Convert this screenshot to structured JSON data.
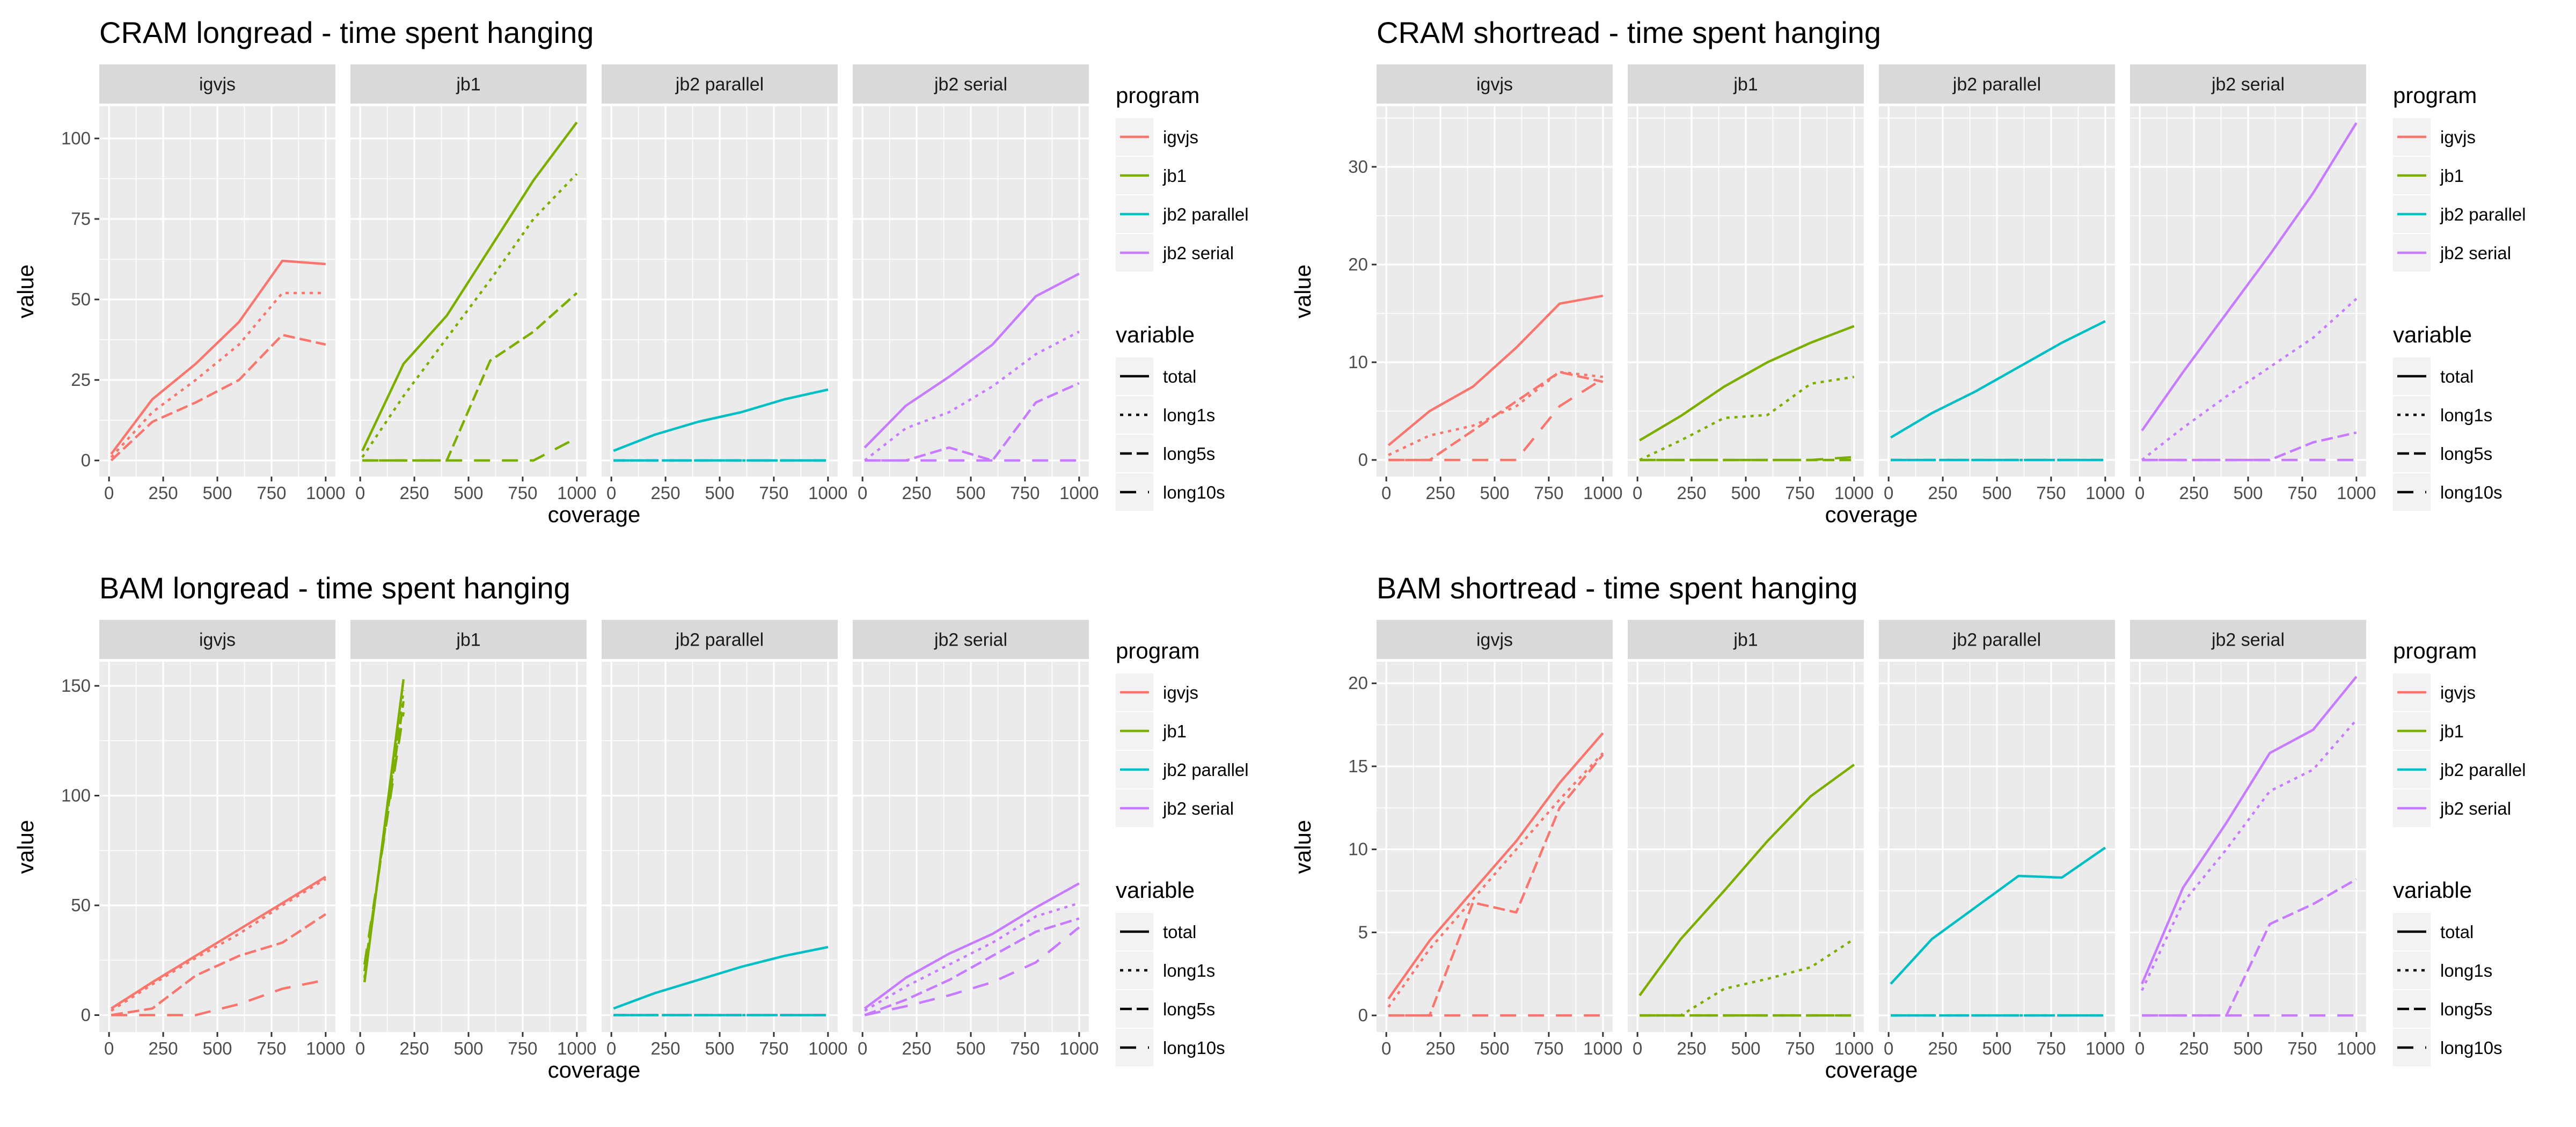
{
  "facets": [
    "igvjs",
    "jb1",
    "jb2 parallel",
    "jb2 serial"
  ],
  "x_label": "coverage",
  "y_label": "value",
  "legend": {
    "program_title": "program",
    "program_items": [
      "igvjs",
      "jb1",
      "jb2 parallel",
      "jb2 serial"
    ],
    "variable_title": "variable",
    "variable_items": [
      "total",
      "long1s",
      "long5s",
      "long10s"
    ]
  },
  "colors": {
    "igvjs": "#F8766D",
    "jb1": "#7CAE00",
    "jb2 parallel": "#00BFC4",
    "jb2 serial": "#C77CFF"
  },
  "chart_data": [
    {
      "type": "line",
      "title": "CRAM longread - time spent hanging",
      "xlabel": "coverage",
      "ylabel": "value",
      "xlim": [
        0,
        1000
      ],
      "ylim": [
        -5,
        110
      ],
      "xticks": [
        0,
        250,
        500,
        750,
        1000
      ],
      "yticks": [
        0,
        25,
        50,
        75,
        100
      ],
      "x_tick_labels": [
        "0",
        "250",
        "500",
        "750",
        "1000"
      ],
      "y_tick_labels": [
        "0",
        "25",
        "50",
        "75",
        "100"
      ],
      "show_xlabel": true,
      "facets": {
        "igvjs": {
          "x": [
            10,
            200,
            400,
            600,
            800,
            1000
          ],
          "total": [
            2,
            19,
            30,
            43,
            62,
            61
          ],
          "long1s": [
            1,
            15,
            25,
            36,
            52,
            52
          ],
          "long5s": [
            0,
            12,
            18,
            25,
            39,
            36
          ],
          "long10s": null
        },
        "jb1": {
          "x": [
            10,
            200,
            400,
            600,
            800,
            1000
          ],
          "total": [
            3,
            30,
            45,
            66,
            87,
            105
          ],
          "long1s": [
            1,
            20,
            38,
            56,
            75,
            89
          ],
          "long5s": [
            0,
            0,
            0,
            31,
            40,
            52
          ],
          "long10s": [
            0,
            0,
            0,
            0,
            0,
            7
          ]
        },
        "jb2 parallel": {
          "x": [
            10,
            200,
            400,
            600,
            800,
            1000
          ],
          "total": [
            3,
            8,
            12,
            15,
            19,
            22
          ],
          "long1s": [
            0,
            0,
            0,
            0,
            0,
            0
          ],
          "long5s": [
            0,
            0,
            0,
            0,
            0,
            0
          ],
          "long10s": [
            0,
            0,
            0,
            0,
            0,
            0
          ]
        },
        "jb2 serial": {
          "x": [
            10,
            200,
            400,
            600,
            800,
            1000
          ],
          "total": [
            4,
            17,
            26,
            36,
            51,
            58
          ],
          "long1s": [
            0,
            10,
            15,
            23,
            33,
            40
          ],
          "long5s": [
            0,
            0,
            4,
            0,
            18,
            24
          ],
          "long10s": [
            0,
            0,
            0,
            0,
            0,
            0
          ]
        }
      }
    },
    {
      "type": "line",
      "title": "CRAM shortread - time spent hanging",
      "xlabel": "coverage",
      "ylabel": "value",
      "xlim": [
        0,
        1000
      ],
      "ylim": [
        -1.7,
        36.2
      ],
      "xticks": [
        0,
        250,
        500,
        750,
        1000
      ],
      "yticks": [
        0,
        10,
        20,
        30
      ],
      "x_tick_labels": [
        "0",
        "250",
        "500",
        "750",
        "1000"
      ],
      "y_tick_labels": [
        "0",
        "10",
        "20",
        "30"
      ],
      "show_xlabel": true,
      "facets": {
        "igvjs": {
          "x": [
            10,
            200,
            400,
            600,
            800,
            1000
          ],
          "total": [
            1.5,
            5,
            7.5,
            11.5,
            16,
            16.8
          ],
          "long1s": [
            0.5,
            2.5,
            3.5,
            5.5,
            9,
            8.5
          ],
          "long5s": [
            0,
            0,
            3,
            6,
            9,
            8
          ],
          "long10s": [
            0,
            0,
            0,
            0,
            5.5,
            8.3
          ]
        },
        "jb1": {
          "x": [
            10,
            200,
            400,
            600,
            800,
            1000
          ],
          "total": [
            2,
            4.5,
            7.5,
            10,
            12,
            13.7
          ],
          "long1s": [
            0,
            2,
            4.3,
            4.6,
            7.8,
            8.5
          ],
          "long5s": [
            0,
            0,
            0,
            0,
            0,
            0
          ],
          "long10s": [
            0,
            0,
            0,
            0,
            0,
            0.3
          ]
        },
        "jb2 parallel": {
          "x": [
            10,
            200,
            400,
            600,
            800,
            1000
          ],
          "total": [
            2.3,
            4.8,
            7,
            9.5,
            12,
            14.2
          ],
          "long1s": [
            0,
            0,
            0,
            0,
            0,
            0
          ],
          "long5s": [
            0,
            0,
            0,
            0,
            0,
            0
          ],
          "long10s": [
            0,
            0,
            0,
            0,
            0,
            0
          ]
        },
        "jb2 serial": {
          "x": [
            10,
            200,
            400,
            600,
            800,
            1000
          ],
          "total": [
            3,
            9,
            15,
            21,
            27.3,
            34.5
          ],
          "long1s": [
            0,
            3.3,
            6.5,
            9.5,
            12.5,
            16.5
          ],
          "long5s": [
            0,
            0,
            0,
            0,
            1.8,
            2.8
          ],
          "long10s": [
            0,
            0,
            0,
            0,
            0,
            0
          ]
        }
      }
    },
    {
      "type": "line",
      "title": "BAM longread - time spent hanging",
      "xlabel": "coverage",
      "ylabel": "value",
      "xlim": [
        0,
        1000
      ],
      "ylim": [
        -7.7,
        161
      ],
      "xticks": [
        0,
        250,
        500,
        750,
        1000
      ],
      "yticks": [
        0,
        50,
        100,
        150
      ],
      "x_tick_labels": [
        "0",
        "250",
        "500",
        "750",
        "1000"
      ],
      "y_tick_labels": [
        "0",
        "50",
        "100",
        "150"
      ],
      "show_xlabel": true,
      "facets": {
        "igvjs": {
          "x": [
            10,
            200,
            400,
            600,
            800,
            1000
          ],
          "total": [
            3,
            15,
            27,
            39,
            51,
            63
          ],
          "long1s": [
            2,
            14,
            26,
            37,
            50,
            62
          ],
          "long5s": [
            0,
            3,
            18,
            27,
            33,
            46
          ],
          "long10s": [
            0,
            0,
            0,
            5,
            12,
            16
          ]
        },
        "jb1": {
          "x": [
            20,
            200
          ],
          "total": [
            15,
            153
          ],
          "long1s": [
            17,
            148
          ],
          "long5s": [
            20,
            143
          ],
          "long10s": [
            23,
            138
          ]
        },
        "jb2 parallel": {
          "x": [
            10,
            200,
            400,
            600,
            800,
            1000
          ],
          "total": [
            3,
            10,
            16,
            22,
            27,
            31
          ],
          "long1s": [
            0,
            0,
            0,
            0,
            0,
            0
          ],
          "long5s": [
            0,
            0,
            0,
            0,
            0,
            0
          ],
          "long10s": [
            0,
            0,
            0,
            0,
            0,
            0
          ]
        },
        "jb2 serial": {
          "x": [
            10,
            200,
            400,
            600,
            800,
            1000
          ],
          "total": [
            3,
            17,
            28,
            37,
            49,
            60
          ],
          "long1s": [
            2,
            13,
            23,
            33,
            45,
            51
          ],
          "long5s": [
            0,
            7,
            16,
            27,
            38,
            44
          ],
          "long10s": [
            0,
            4,
            9,
            15,
            24,
            40
          ]
        }
      }
    },
    {
      "type": "line",
      "title": "BAM shortread - time spent hanging",
      "xlabel": "coverage",
      "ylabel": "value",
      "xlim": [
        0,
        1000
      ],
      "ylim": [
        -1,
        21.3
      ],
      "xticks": [
        0,
        250,
        500,
        750,
        1000
      ],
      "yticks": [
        0,
        5,
        10,
        15,
        20
      ],
      "x_tick_labels": [
        "0",
        "250",
        "500",
        "750",
        "1000"
      ],
      "y_tick_labels": [
        "0",
        "5",
        "10",
        "15",
        "20"
      ],
      "show_xlabel": true,
      "facets": {
        "igvjs": {
          "x": [
            10,
            200,
            400,
            600,
            800,
            1000
          ],
          "total": [
            1,
            4.5,
            7.5,
            10.5,
            14,
            17
          ],
          "long1s": [
            0.5,
            4,
            7,
            10,
            13,
            15.8
          ],
          "long5s": [
            0,
            0,
            6.8,
            6.2,
            12.5,
            15.7
          ],
          "long10s": [
            0,
            0,
            0,
            0,
            0,
            0
          ]
        },
        "jb1": {
          "x": [
            10,
            200,
            400,
            600,
            800,
            1000
          ],
          "total": [
            1.2,
            4.6,
            7.5,
            10.5,
            13.2,
            15.1
          ],
          "long1s": [
            0,
            0,
            1.6,
            2.2,
            2.9,
            4.6
          ],
          "long5s": [
            0,
            0,
            0,
            0,
            0,
            0
          ],
          "long10s": [
            0,
            0,
            0,
            0,
            0,
            0
          ]
        },
        "jb2 parallel": {
          "x": [
            10,
            200,
            400,
            600,
            800,
            1000
          ],
          "total": [
            1.9,
            4.6,
            6.5,
            8.4,
            8.3,
            10.1
          ],
          "long1s": [
            0,
            0,
            0,
            0,
            0,
            0
          ],
          "long5s": [
            0,
            0,
            0,
            0,
            0,
            0
          ],
          "long10s": [
            0,
            0,
            0,
            0,
            0,
            0
          ]
        },
        "jb2 serial": {
          "x": [
            10,
            200,
            400,
            600,
            800,
            1000
          ],
          "total": [
            1.9,
            7.7,
            11.6,
            15.8,
            17.2,
            20.4
          ],
          "long1s": [
            1.5,
            6.8,
            10,
            13.5,
            14.8,
            17.8
          ],
          "long5s": [
            0,
            0,
            0,
            5.5,
            6.7,
            8.2
          ],
          "long10s": [
            0,
            0,
            0,
            0,
            0,
            0
          ]
        }
      }
    }
  ]
}
